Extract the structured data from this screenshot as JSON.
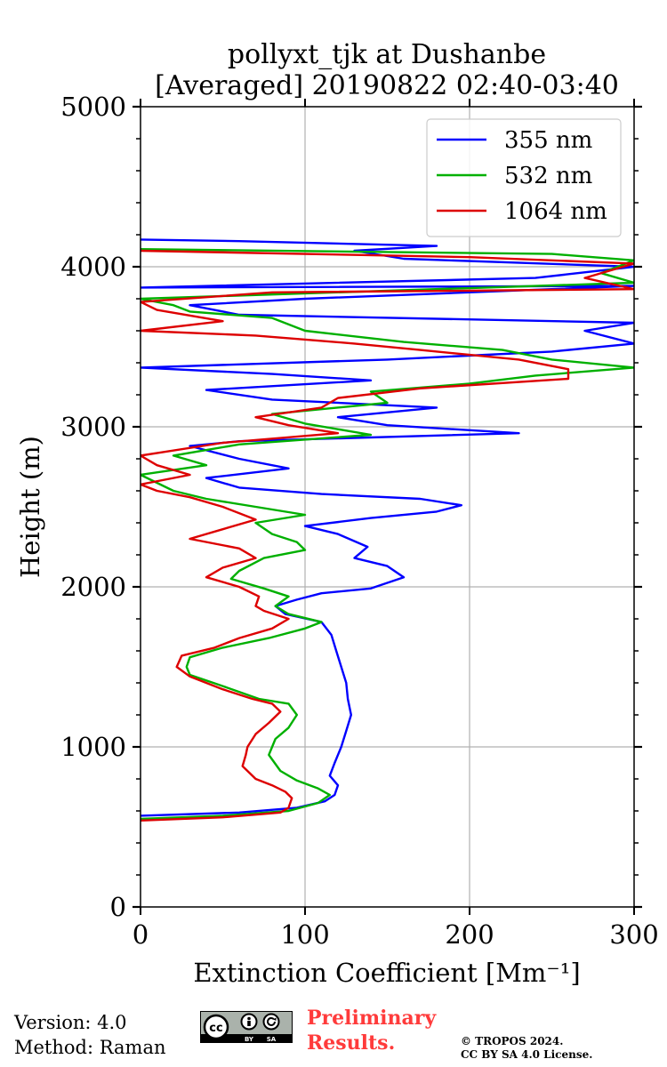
{
  "chart_data": {
    "type": "line",
    "title": "pollyxt_tjk at Dushanbe",
    "subtitle": "[Averaged] 20190822 02:40-03:40",
    "xlabel": "Extinction Coefficient [Mm⁻¹]",
    "ylabel": "Height (m)",
    "xlim": [
      0,
      300
    ],
    "ylim": [
      0,
      5000
    ],
    "xticks": [
      "0",
      "100",
      "200",
      "300"
    ],
    "yticks": [
      "0",
      "1000",
      "2000",
      "3000",
      "4000",
      "5000"
    ],
    "grid": true,
    "legend_position": "top-right",
    "series": [
      {
        "name": "355 nm",
        "color": "#0000ff",
        "points": [
          [
            0,
            570
          ],
          [
            60,
            590
          ],
          [
            95,
            620
          ],
          [
            112,
            660
          ],
          [
            118,
            700
          ],
          [
            120,
            760
          ],
          [
            115,
            820
          ],
          [
            118,
            900
          ],
          [
            122,
            1000
          ],
          [
            125,
            1100
          ],
          [
            128,
            1200
          ],
          [
            126,
            1300
          ],
          [
            125,
            1400
          ],
          [
            122,
            1500
          ],
          [
            119,
            1600
          ],
          [
            116,
            1700
          ],
          [
            110,
            1780
          ],
          [
            88,
            1830
          ],
          [
            82,
            1880
          ],
          [
            95,
            1920
          ],
          [
            110,
            1960
          ],
          [
            140,
            1990
          ],
          [
            160,
            2060
          ],
          [
            150,
            2130
          ],
          [
            130,
            2180
          ],
          [
            138,
            2250
          ],
          [
            120,
            2330
          ],
          [
            100,
            2380
          ],
          [
            140,
            2430
          ],
          [
            180,
            2470
          ],
          [
            195,
            2510
          ],
          [
            170,
            2550
          ],
          [
            110,
            2580
          ],
          [
            60,
            2620
          ],
          [
            40,
            2680
          ],
          [
            90,
            2740
          ],
          [
            60,
            2800
          ],
          [
            30,
            2880
          ],
          [
            60,
            2910
          ],
          [
            230,
            2960
          ],
          [
            150,
            3010
          ],
          [
            120,
            3060
          ],
          [
            180,
            3120
          ],
          [
            80,
            3170
          ],
          [
            40,
            3230
          ],
          [
            140,
            3290
          ],
          [
            80,
            3330
          ],
          [
            0,
            3370
          ],
          [
            150,
            3420
          ],
          [
            250,
            3470
          ],
          [
            300,
            3520
          ],
          [
            270,
            3600
          ],
          [
            300,
            3650
          ],
          [
            60,
            3700
          ],
          [
            30,
            3760
          ],
          [
            100,
            3800
          ],
          [
            300,
            3880
          ],
          [
            0,
            3870
          ],
          [
            240,
            3930
          ],
          [
            300,
            4000
          ],
          [
            160,
            4050
          ],
          [
            130,
            4100
          ],
          [
            180,
            4130
          ],
          [
            60,
            4160
          ],
          [
            0,
            4170
          ]
        ]
      },
      {
        "name": "532 nm",
        "color": "#00b000",
        "points": [
          [
            0,
            550
          ],
          [
            50,
            570
          ],
          [
            90,
            600
          ],
          [
            108,
            650
          ],
          [
            115,
            700
          ],
          [
            108,
            740
          ],
          [
            95,
            790
          ],
          [
            85,
            850
          ],
          [
            78,
            950
          ],
          [
            82,
            1050
          ],
          [
            90,
            1120
          ],
          [
            95,
            1200
          ],
          [
            90,
            1270
          ],
          [
            72,
            1300
          ],
          [
            50,
            1380
          ],
          [
            30,
            1450
          ],
          [
            28,
            1500
          ],
          [
            30,
            1560
          ],
          [
            50,
            1620
          ],
          [
            78,
            1680
          ],
          [
            100,
            1740
          ],
          [
            110,
            1780
          ],
          [
            90,
            1830
          ],
          [
            82,
            1880
          ],
          [
            90,
            1940
          ],
          [
            75,
            1990
          ],
          [
            55,
            2050
          ],
          [
            60,
            2100
          ],
          [
            75,
            2180
          ],
          [
            100,
            2230
          ],
          [
            95,
            2280
          ],
          [
            80,
            2330
          ],
          [
            70,
            2400
          ],
          [
            100,
            2450
          ],
          [
            70,
            2500
          ],
          [
            40,
            2550
          ],
          [
            20,
            2600
          ],
          [
            10,
            2650
          ],
          [
            0,
            2700
          ],
          [
            40,
            2760
          ],
          [
            20,
            2820
          ],
          [
            60,
            2890
          ],
          [
            140,
            2950
          ],
          [
            100,
            3020
          ],
          [
            80,
            3080
          ],
          [
            150,
            3150
          ],
          [
            140,
            3220
          ],
          [
            200,
            3270
          ],
          [
            240,
            3320
          ],
          [
            300,
            3370
          ],
          [
            250,
            3420
          ],
          [
            220,
            3480
          ],
          [
            160,
            3530
          ],
          [
            100,
            3600
          ],
          [
            80,
            3680
          ],
          [
            30,
            3720
          ],
          [
            20,
            3760
          ],
          [
            0,
            3800
          ],
          [
            150,
            3850
          ],
          [
            300,
            3900
          ],
          [
            280,
            3960
          ],
          [
            300,
            4040
          ],
          [
            250,
            4080
          ],
          [
            0,
            4110
          ]
        ]
      },
      {
        "name": "1064 nm",
        "color": "#dd0000",
        "points": [
          [
            0,
            540
          ],
          [
            50,
            560
          ],
          [
            85,
            590
          ],
          [
            90,
            620
          ],
          [
            92,
            680
          ],
          [
            88,
            720
          ],
          [
            80,
            760
          ],
          [
            70,
            800
          ],
          [
            62,
            880
          ],
          [
            64,
            950
          ],
          [
            65,
            1000
          ],
          [
            70,
            1080
          ],
          [
            78,
            1150
          ],
          [
            85,
            1220
          ],
          [
            80,
            1270
          ],
          [
            68,
            1300
          ],
          [
            50,
            1360
          ],
          [
            30,
            1440
          ],
          [
            22,
            1500
          ],
          [
            25,
            1570
          ],
          [
            45,
            1620
          ],
          [
            60,
            1680
          ],
          [
            80,
            1740
          ],
          [
            90,
            1800
          ],
          [
            75,
            1850
          ],
          [
            70,
            1880
          ],
          [
            72,
            1940
          ],
          [
            60,
            2000
          ],
          [
            40,
            2060
          ],
          [
            50,
            2120
          ],
          [
            70,
            2180
          ],
          [
            60,
            2240
          ],
          [
            30,
            2300
          ],
          [
            50,
            2360
          ],
          [
            70,
            2420
          ],
          [
            50,
            2500
          ],
          [
            30,
            2560
          ],
          [
            10,
            2600
          ],
          [
            0,
            2640
          ],
          [
            30,
            2700
          ],
          [
            10,
            2760
          ],
          [
            0,
            2820
          ],
          [
            50,
            2900
          ],
          [
            120,
            2960
          ],
          [
            90,
            3010
          ],
          [
            70,
            3060
          ],
          [
            110,
            3120
          ],
          [
            120,
            3180
          ],
          [
            170,
            3240
          ],
          [
            260,
            3300
          ],
          [
            260,
            3360
          ],
          [
            230,
            3420
          ],
          [
            170,
            3480
          ],
          [
            130,
            3520
          ],
          [
            70,
            3570
          ],
          [
            0,
            3600
          ],
          [
            50,
            3660
          ],
          [
            10,
            3730
          ],
          [
            0,
            3780
          ],
          [
            80,
            3840
          ],
          [
            300,
            3860
          ],
          [
            270,
            3930
          ],
          [
            300,
            4020
          ],
          [
            200,
            4060
          ],
          [
            0,
            4100
          ]
        ]
      }
    ]
  },
  "footer": {
    "version": "Version: 4.0",
    "method": "Method: Raman",
    "license_icon": "cc-by-sa-badge",
    "preliminary_line1": "Preliminary",
    "preliminary_line2": "Results.",
    "copyright_line1": "© TROPOS 2024.",
    "copyright_line2": "CC BY SA 4.0 License."
  }
}
